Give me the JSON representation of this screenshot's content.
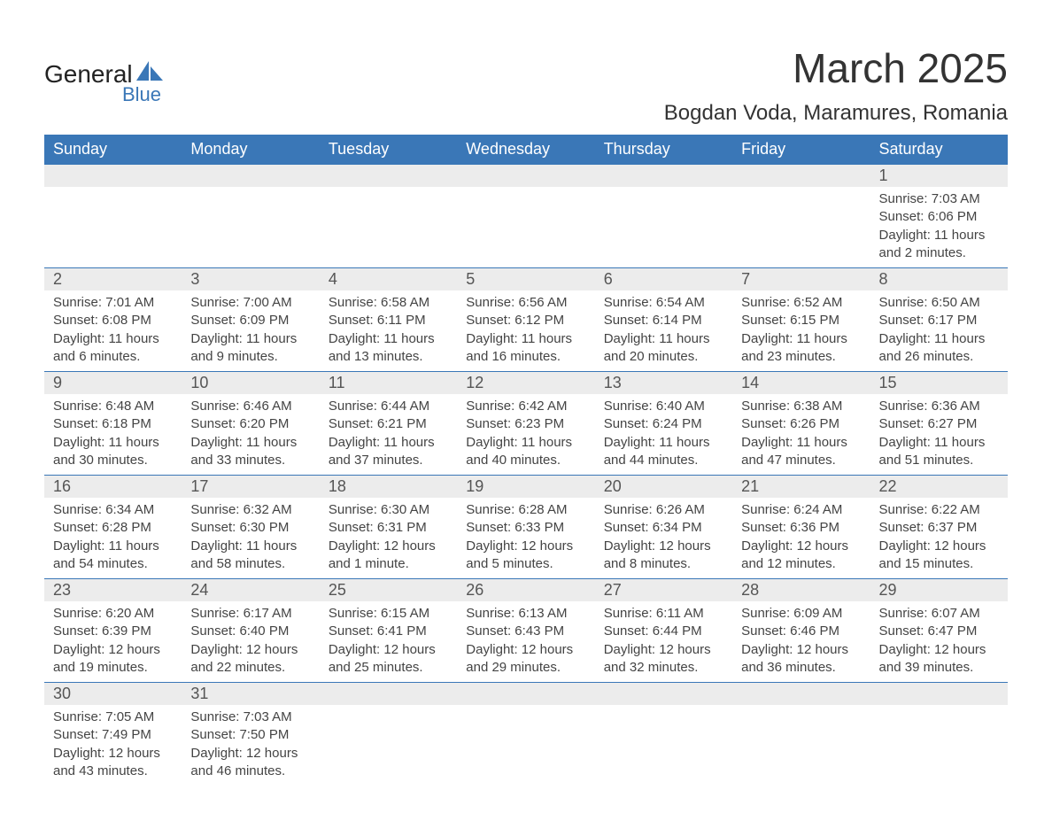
{
  "brand": {
    "text_top": "General",
    "text_bottom": "Blue",
    "shape_color": "#3a77b7"
  },
  "title": "March 2025",
  "location": "Bogdan Voda, Maramures, Romania",
  "colors": {
    "header_bg": "#3a77b7",
    "header_fg": "#ffffff",
    "daynum_bg": "#ececec",
    "text": "#444444",
    "border": "#3a77b7"
  },
  "day_headers": [
    "Sunday",
    "Monday",
    "Tuesday",
    "Wednesday",
    "Thursday",
    "Friday",
    "Saturday"
  ],
  "weeks": [
    [
      null,
      null,
      null,
      null,
      null,
      null,
      {
        "n": "1",
        "sunrise": "Sunrise: 7:03 AM",
        "sunset": "Sunset: 6:06 PM",
        "dl1": "Daylight: 11 hours",
        "dl2": "and 2 minutes."
      }
    ],
    [
      {
        "n": "2",
        "sunrise": "Sunrise: 7:01 AM",
        "sunset": "Sunset: 6:08 PM",
        "dl1": "Daylight: 11 hours",
        "dl2": "and 6 minutes."
      },
      {
        "n": "3",
        "sunrise": "Sunrise: 7:00 AM",
        "sunset": "Sunset: 6:09 PM",
        "dl1": "Daylight: 11 hours",
        "dl2": "and 9 minutes."
      },
      {
        "n": "4",
        "sunrise": "Sunrise: 6:58 AM",
        "sunset": "Sunset: 6:11 PM",
        "dl1": "Daylight: 11 hours",
        "dl2": "and 13 minutes."
      },
      {
        "n": "5",
        "sunrise": "Sunrise: 6:56 AM",
        "sunset": "Sunset: 6:12 PM",
        "dl1": "Daylight: 11 hours",
        "dl2": "and 16 minutes."
      },
      {
        "n": "6",
        "sunrise": "Sunrise: 6:54 AM",
        "sunset": "Sunset: 6:14 PM",
        "dl1": "Daylight: 11 hours",
        "dl2": "and 20 minutes."
      },
      {
        "n": "7",
        "sunrise": "Sunrise: 6:52 AM",
        "sunset": "Sunset: 6:15 PM",
        "dl1": "Daylight: 11 hours",
        "dl2": "and 23 minutes."
      },
      {
        "n": "8",
        "sunrise": "Sunrise: 6:50 AM",
        "sunset": "Sunset: 6:17 PM",
        "dl1": "Daylight: 11 hours",
        "dl2": "and 26 minutes."
      }
    ],
    [
      {
        "n": "9",
        "sunrise": "Sunrise: 6:48 AM",
        "sunset": "Sunset: 6:18 PM",
        "dl1": "Daylight: 11 hours",
        "dl2": "and 30 minutes."
      },
      {
        "n": "10",
        "sunrise": "Sunrise: 6:46 AM",
        "sunset": "Sunset: 6:20 PM",
        "dl1": "Daylight: 11 hours",
        "dl2": "and 33 minutes."
      },
      {
        "n": "11",
        "sunrise": "Sunrise: 6:44 AM",
        "sunset": "Sunset: 6:21 PM",
        "dl1": "Daylight: 11 hours",
        "dl2": "and 37 minutes."
      },
      {
        "n": "12",
        "sunrise": "Sunrise: 6:42 AM",
        "sunset": "Sunset: 6:23 PM",
        "dl1": "Daylight: 11 hours",
        "dl2": "and 40 minutes."
      },
      {
        "n": "13",
        "sunrise": "Sunrise: 6:40 AM",
        "sunset": "Sunset: 6:24 PM",
        "dl1": "Daylight: 11 hours",
        "dl2": "and 44 minutes."
      },
      {
        "n": "14",
        "sunrise": "Sunrise: 6:38 AM",
        "sunset": "Sunset: 6:26 PM",
        "dl1": "Daylight: 11 hours",
        "dl2": "and 47 minutes."
      },
      {
        "n": "15",
        "sunrise": "Sunrise: 6:36 AM",
        "sunset": "Sunset: 6:27 PM",
        "dl1": "Daylight: 11 hours",
        "dl2": "and 51 minutes."
      }
    ],
    [
      {
        "n": "16",
        "sunrise": "Sunrise: 6:34 AM",
        "sunset": "Sunset: 6:28 PM",
        "dl1": "Daylight: 11 hours",
        "dl2": "and 54 minutes."
      },
      {
        "n": "17",
        "sunrise": "Sunrise: 6:32 AM",
        "sunset": "Sunset: 6:30 PM",
        "dl1": "Daylight: 11 hours",
        "dl2": "and 58 minutes."
      },
      {
        "n": "18",
        "sunrise": "Sunrise: 6:30 AM",
        "sunset": "Sunset: 6:31 PM",
        "dl1": "Daylight: 12 hours",
        "dl2": "and 1 minute."
      },
      {
        "n": "19",
        "sunrise": "Sunrise: 6:28 AM",
        "sunset": "Sunset: 6:33 PM",
        "dl1": "Daylight: 12 hours",
        "dl2": "and 5 minutes."
      },
      {
        "n": "20",
        "sunrise": "Sunrise: 6:26 AM",
        "sunset": "Sunset: 6:34 PM",
        "dl1": "Daylight: 12 hours",
        "dl2": "and 8 minutes."
      },
      {
        "n": "21",
        "sunrise": "Sunrise: 6:24 AM",
        "sunset": "Sunset: 6:36 PM",
        "dl1": "Daylight: 12 hours",
        "dl2": "and 12 minutes."
      },
      {
        "n": "22",
        "sunrise": "Sunrise: 6:22 AM",
        "sunset": "Sunset: 6:37 PM",
        "dl1": "Daylight: 12 hours",
        "dl2": "and 15 minutes."
      }
    ],
    [
      {
        "n": "23",
        "sunrise": "Sunrise: 6:20 AM",
        "sunset": "Sunset: 6:39 PM",
        "dl1": "Daylight: 12 hours",
        "dl2": "and 19 minutes."
      },
      {
        "n": "24",
        "sunrise": "Sunrise: 6:17 AM",
        "sunset": "Sunset: 6:40 PM",
        "dl1": "Daylight: 12 hours",
        "dl2": "and 22 minutes."
      },
      {
        "n": "25",
        "sunrise": "Sunrise: 6:15 AM",
        "sunset": "Sunset: 6:41 PM",
        "dl1": "Daylight: 12 hours",
        "dl2": "and 25 minutes."
      },
      {
        "n": "26",
        "sunrise": "Sunrise: 6:13 AM",
        "sunset": "Sunset: 6:43 PM",
        "dl1": "Daylight: 12 hours",
        "dl2": "and 29 minutes."
      },
      {
        "n": "27",
        "sunrise": "Sunrise: 6:11 AM",
        "sunset": "Sunset: 6:44 PM",
        "dl1": "Daylight: 12 hours",
        "dl2": "and 32 minutes."
      },
      {
        "n": "28",
        "sunrise": "Sunrise: 6:09 AM",
        "sunset": "Sunset: 6:46 PM",
        "dl1": "Daylight: 12 hours",
        "dl2": "and 36 minutes."
      },
      {
        "n": "29",
        "sunrise": "Sunrise: 6:07 AM",
        "sunset": "Sunset: 6:47 PM",
        "dl1": "Daylight: 12 hours",
        "dl2": "and 39 minutes."
      }
    ],
    [
      {
        "n": "30",
        "sunrise": "Sunrise: 7:05 AM",
        "sunset": "Sunset: 7:49 PM",
        "dl1": "Daylight: 12 hours",
        "dl2": "and 43 minutes."
      },
      {
        "n": "31",
        "sunrise": "Sunrise: 7:03 AM",
        "sunset": "Sunset: 7:50 PM",
        "dl1": "Daylight: 12 hours",
        "dl2": "and 46 minutes."
      },
      null,
      null,
      null,
      null,
      null
    ]
  ]
}
